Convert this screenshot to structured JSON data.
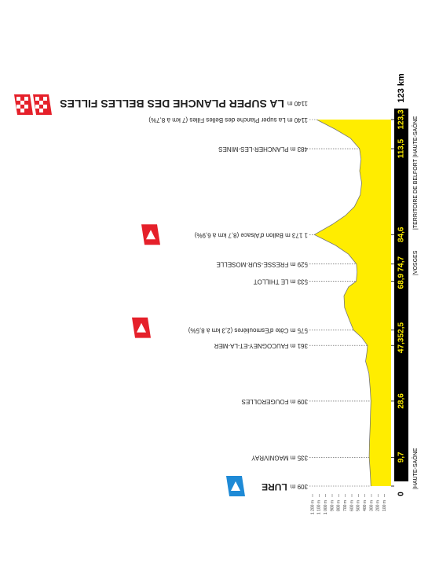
{
  "chart_data": {
    "type": "profile",
    "distance_label": "123 km",
    "x": [
      0,
      5,
      9.7,
      15,
      20,
      25,
      28.6,
      33,
      38,
      42,
      45,
      47.3,
      50,
      52.5,
      56,
      60,
      64,
      67,
      68.9,
      72,
      74.7,
      78,
      81,
      84.6,
      88,
      91,
      94,
      98,
      102,
      106,
      110,
      113.5,
      117,
      120,
      123.3
    ],
    "values": [
      309,
      320,
      335,
      330,
      320,
      315,
      309,
      320,
      340,
      390,
      370,
      361,
      450,
      575,
      640,
      710,
      720,
      650,
      533,
      520,
      529,
      650,
      850,
      1173,
      900,
      700,
      560,
      470,
      450,
      480,
      460,
      483,
      620,
      850,
      1140
    ],
    "color": "#ffed00",
    "xlim": [
      0,
      123.3
    ],
    "ylim": [
      0,
      1200
    ],
    "xticks": [
      0,
      {
        "value": 9.7,
        "label": "9,7"
      },
      {
        "value": 28.6,
        "label": "28,6"
      },
      {
        "value": 47.3,
        "label": "47,3"
      },
      {
        "value": 52.5,
        "label": "52,5"
      },
      {
        "value": 68.9,
        "label": "68,9"
      },
      {
        "value": 74.7,
        "label": "74,7"
      },
      {
        "value": 84.6,
        "label": "84,6"
      },
      {
        "value": 113.5,
        "label": "113,5"
      },
      {
        "value": 123.3,
        "label": "123,3"
      }
    ],
    "yticks": [
      {
        "value": 1200,
        "label": "1 200 m"
      },
      {
        "value": 1100,
        "label": "1 100 m"
      },
      {
        "value": 1000,
        "label": "1 000 m"
      },
      {
        "value": 900,
        "label": "900 m"
      },
      {
        "value": 800,
        "label": "800 m"
      },
      {
        "value": 700,
        "label": "700 m"
      },
      {
        "value": 600,
        "label": "600 m"
      },
      {
        "value": 500,
        "label": "500 m"
      },
      {
        "value": 400,
        "label": "400 m"
      },
      {
        "value": 300,
        "label": "300 m"
      },
      {
        "value": 200,
        "label": "200 m"
      },
      {
        "value": 100,
        "label": "100 m"
      }
    ],
    "finish": {
      "text": "1140 m",
      "name": "LA SUPER PLANCHE DES BELLES FILLES"
    },
    "waypoints": [
      {
        "km": 0,
        "text": "309 m",
        "name": "LURE"
      },
      {
        "km": 9.7,
        "text": "335 m MAGNIVRAY"
      },
      {
        "km": 28.6,
        "text": "309 m FOUGEROLLES"
      },
      {
        "km": 47.3,
        "text": "361 m FAUCOGNEY-ET-LA-MER"
      },
      {
        "km": 52.5,
        "text": "575 m Côte d'Esmoulières (2,3 km à 8,5%)"
      },
      {
        "km": 68.9,
        "text": "533 m LE THILLOT"
      },
      {
        "km": 74.7,
        "text": "529 m FRESSE-SUR-MOSELLE"
      },
      {
        "km": 84.6,
        "text": "1 173 m Ballon d'Alsace (8,7 km à 6,9%)"
      },
      {
        "km": 113.5,
        "text": "483 m PLANCHER-LES-MINES"
      },
      {
        "km": 123.3,
        "text": "1140 m La super Planche des Belles Filles (7 km à 8,7%)"
      }
    ],
    "regions": [
      "|HAUTE-SAÔNE",
      "|VOSGES",
      "|TERRITOIRE DE BELFORT",
      "|HAUTE-SAÔNE"
    ]
  }
}
